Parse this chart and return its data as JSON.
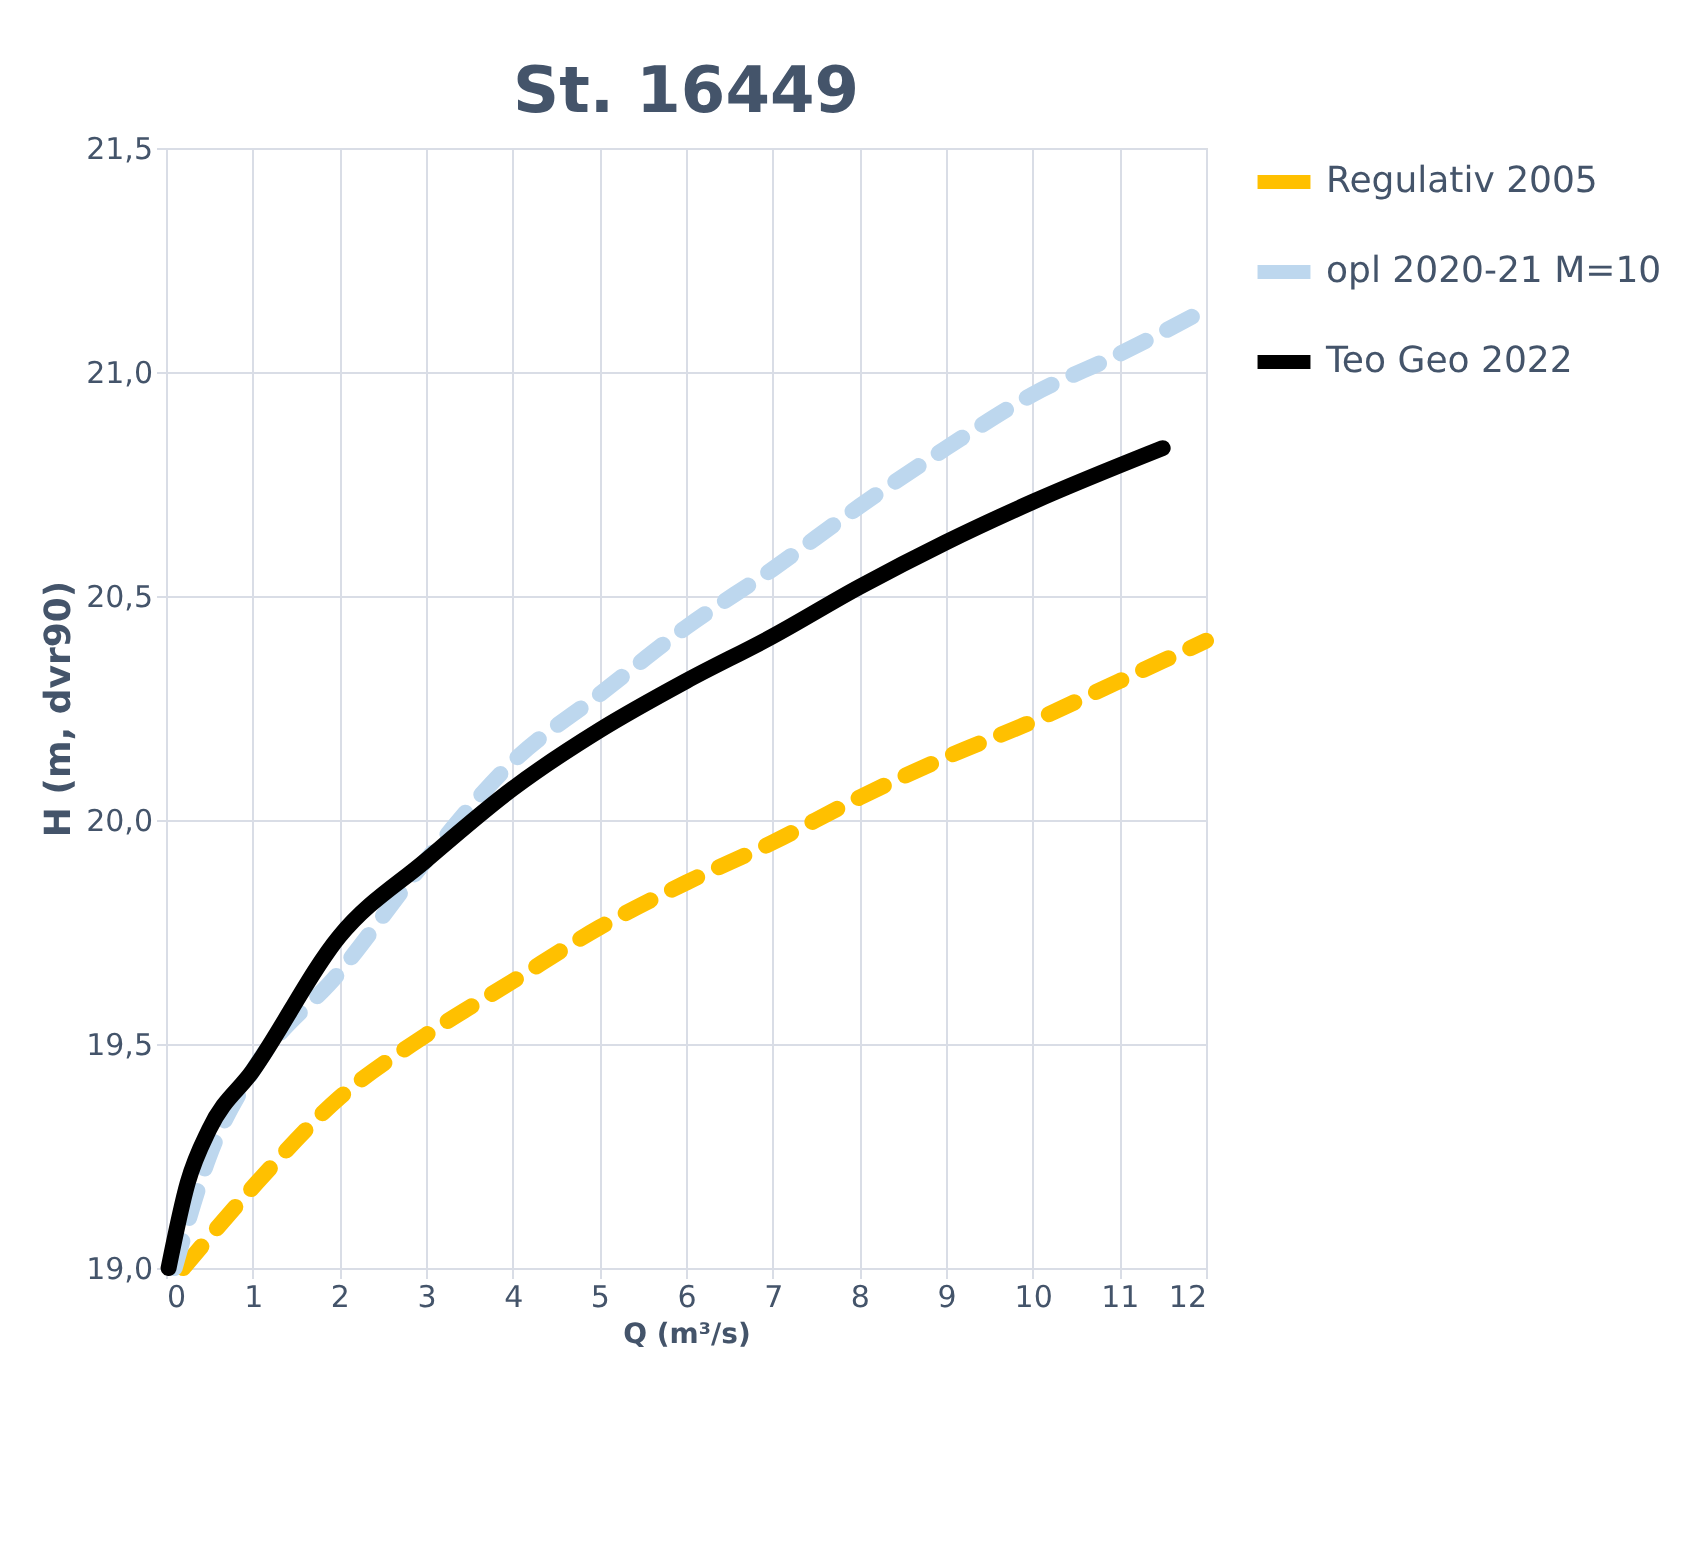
{
  "chart_data": {
    "type": "line",
    "title": "St. 16449",
    "xlabel": "Q (m³/s)",
    "ylabel": "H (m, dvr90)",
    "xlim": [
      0,
      12
    ],
    "xticks": [
      0,
      1,
      2,
      3,
      4,
      5,
      6,
      7,
      8,
      9,
      10,
      11,
      12
    ],
    "ylim": [
      19.0,
      21.5
    ],
    "yticks": [
      {
        "value": 19.0,
        "label": "19,0"
      },
      {
        "value": 19.5,
        "label": "19,5"
      },
      {
        "value": 20.0,
        "label": "20,0"
      },
      {
        "value": 20.5,
        "label": "20,5"
      },
      {
        "value": 21.0,
        "label": "21,0"
      },
      {
        "value": 21.5,
        "label": "21,5"
      }
    ],
    "grid": true,
    "legend": "right",
    "marker": "none",
    "series": [
      {
        "name": "Regulativ 2005",
        "color": "#ffc000",
        "line_style": "dashed",
        "x": [
          0.2,
          1,
          2,
          3,
          4,
          5,
          6,
          7,
          8,
          9,
          10,
          11,
          12
        ],
        "values": [
          19.0,
          19.18,
          19.38,
          19.52,
          19.64,
          19.76,
          19.86,
          19.95,
          20.05,
          20.14,
          20.22,
          20.31,
          20.4
        ]
      },
      {
        "name": "opl 2020-21 M=10",
        "color": "#bdd7ee",
        "line_style": "dashed",
        "x": [
          0.1,
          0.5,
          1,
          2,
          3,
          4,
          5,
          6,
          7,
          8,
          9,
          10,
          11,
          12
        ],
        "values": [
          19.0,
          19.25,
          19.44,
          19.66,
          19.91,
          20.13,
          20.28,
          20.43,
          20.56,
          20.7,
          20.83,
          20.95,
          21.04,
          21.14
        ]
      },
      {
        "name": "Teo Geo 2022",
        "color": "#000000",
        "line_style": "solid",
        "x": [
          0.03,
          0.25,
          0.5,
          1,
          2,
          3,
          4,
          5,
          6,
          7,
          8,
          9,
          10,
          11.5
        ],
        "values": [
          19.0,
          19.19,
          19.31,
          19.44,
          19.74,
          19.91,
          20.07,
          20.2,
          20.31,
          20.41,
          20.52,
          20.62,
          20.71,
          20.83
        ]
      }
    ]
  }
}
